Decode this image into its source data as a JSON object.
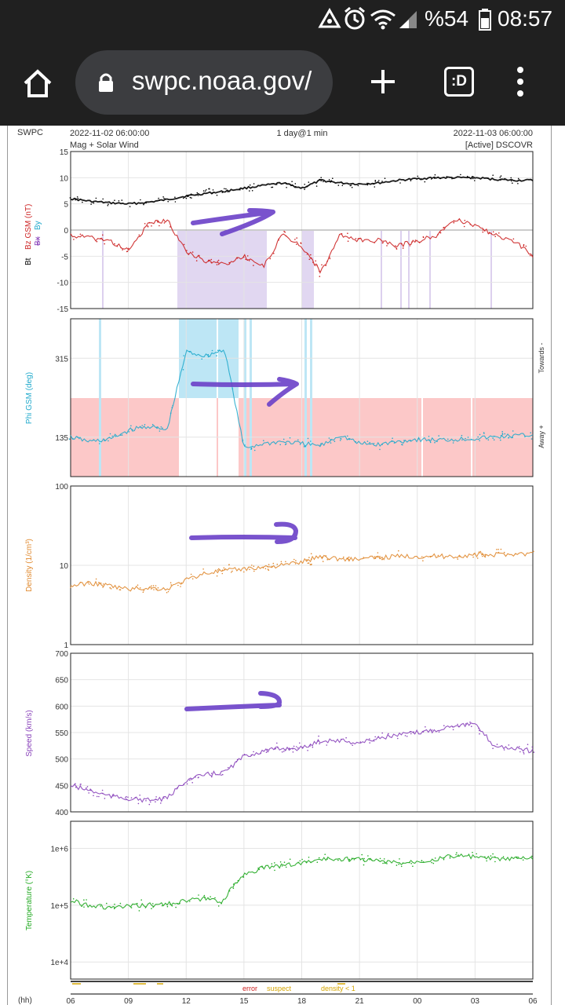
{
  "status_bar": {
    "battery": "%54",
    "time": "08:57",
    "icons": [
      "data-saver-icon",
      "alarm-icon",
      "wifi-icon",
      "signal-icon",
      "battery-icon"
    ]
  },
  "browser": {
    "url": "swpc.noaa.gov/",
    "icons": [
      "home-icon",
      "lock-icon",
      "new-tab-icon",
      "tab-switcher-icon",
      "menu-icon"
    ],
    "tab_label": ":D"
  },
  "header": {
    "left": "SWPC",
    "start": "2022-11-02 06:00:00",
    "title": "1 day@1 min",
    "end": "2022-11-03 06:00:00",
    "subtitle": "Mag + Solar Wind",
    "source": "[Active] DSCOVR"
  },
  "colors": {
    "bt": "#000000",
    "bz": "#cc2222",
    "phi": "#22aacc",
    "density": "#e08a30",
    "speed": "#8a44bb",
    "temperature": "#22aa22",
    "annotation": "#6a40c8",
    "bz_shade": "#dcd0ee",
    "towards": "#bde6f5",
    "away": "#fcc8c8"
  },
  "x_axis": {
    "label": "(hh)",
    "ticks": [
      "06",
      "09",
      "12",
      "15",
      "18",
      "21",
      "00",
      "03",
      "06"
    ]
  },
  "quality_legend": {
    "error": "error",
    "suspect": "suspect",
    "density": "density < 1"
  },
  "chart_data": [
    {
      "type": "line",
      "id": "mag",
      "ylabel": "Bt Bz GSM (nT)",
      "legend_parts": [
        "Bt",
        "Bz GSM (nT)",
        "Bx",
        "By"
      ],
      "ylim": [
        -15,
        15
      ],
      "ytick_labels": [
        "15",
        "10",
        "5",
        "0",
        "-5",
        "-10",
        "-15"
      ],
      "x": [
        6,
        7,
        8,
        9,
        10,
        11,
        12,
        13,
        14,
        15,
        16,
        17,
        18,
        19,
        20,
        21,
        22,
        23,
        24,
        25,
        26,
        27,
        28,
        29,
        30
      ],
      "series": [
        {
          "name": "Bt",
          "values": [
            6,
            5.5,
            5.2,
            5,
            5.3,
            5.8,
            6.5,
            7,
            7.4,
            8,
            8.5,
            9,
            8,
            9.5,
            9,
            8.8,
            9,
            9.5,
            9.8,
            10,
            10,
            10,
            9.7,
            9.5,
            9.5
          ]
        },
        {
          "name": "Bz GSM (nT)",
          "values": [
            -1,
            -1.5,
            -2,
            -4,
            1,
            2,
            -4,
            -6,
            -6.5,
            -5,
            -7,
            -1,
            -3,
            -8,
            -1,
            -2,
            -2,
            -3,
            -2,
            -1,
            2,
            1,
            -1,
            -2,
            -5
          ]
        }
      ]
    },
    {
      "type": "line",
      "id": "phi",
      "ylabel": "Phi GSM (deg)",
      "ylim": [
        45,
        405
      ],
      "ytick_labels": [
        "315",
        "135"
      ],
      "side_labels": [
        "Towards -",
        "Away +"
      ],
      "x": [
        6,
        7,
        8,
        9,
        10,
        11,
        12,
        13,
        14,
        15,
        16,
        17,
        18,
        19,
        20,
        21,
        22,
        23,
        24,
        25,
        26,
        27,
        28,
        29,
        30
      ],
      "series": [
        {
          "name": "Phi GSM (deg)",
          "values": [
            135,
            125,
            130,
            150,
            160,
            150,
            330,
            320,
            335,
            110,
            120,
            125,
            120,
            115,
            140,
            120,
            118,
            125,
            130,
            128,
            130,
            132,
            135,
            138,
            140
          ]
        }
      ]
    },
    {
      "type": "line",
      "id": "density",
      "ylabel": "Density (1/cm³)",
      "scale": "log",
      "ylim": [
        1,
        100
      ],
      "ytick_labels": [
        "100",
        "10",
        "1"
      ],
      "x": [
        6,
        7,
        8,
        9,
        10,
        11,
        12,
        13,
        14,
        15,
        16,
        17,
        18,
        19,
        20,
        21,
        22,
        23,
        24,
        25,
        26,
        27,
        28,
        29,
        30
      ],
      "series": [
        {
          "name": "Density (1/cm³)",
          "values": [
            5.5,
            6,
            5.5,
            5,
            5.2,
            5,
            6.5,
            8,
            8.5,
            9,
            9.5,
            10,
            11,
            13,
            12,
            12,
            12.5,
            13,
            13,
            13,
            13,
            13.5,
            13.5,
            14,
            14
          ]
        }
      ]
    },
    {
      "type": "line",
      "id": "speed",
      "ylabel": "Speed (km/s)",
      "ylim": [
        400,
        700
      ],
      "ytick_labels": [
        "700",
        "650",
        "600",
        "550",
        "500",
        "450",
        "400"
      ],
      "x": [
        6,
        7,
        8,
        9,
        10,
        11,
        12,
        13,
        14,
        15,
        16,
        17,
        18,
        19,
        20,
        21,
        22,
        23,
        24,
        25,
        26,
        27,
        28,
        29,
        30
      ],
      "series": [
        {
          "name": "Speed (km/s)",
          "values": [
            450,
            440,
            430,
            425,
            422,
            425,
            460,
            470,
            475,
            505,
            515,
            520,
            520,
            535,
            535,
            530,
            540,
            545,
            550,
            555,
            565,
            565,
            525,
            520,
            515
          ]
        }
      ]
    },
    {
      "type": "line",
      "id": "temperature",
      "ylabel": "Temperature (°K)",
      "scale": "log",
      "ylim": [
        5000,
        3000000
      ],
      "ytick_labels": [
        "1e+6",
        "1e+5",
        "1e+4"
      ],
      "x": [
        6,
        7,
        8,
        9,
        10,
        11,
        12,
        13,
        14,
        15,
        16,
        17,
        18,
        19,
        20,
        21,
        22,
        23,
        24,
        25,
        26,
        27,
        28,
        29,
        30
      ],
      "series": [
        {
          "name": "Temperature (°K)",
          "values": [
            120000,
            100000,
            90000,
            95000,
            100000,
            105000,
            120000,
            130000,
            115000,
            350000,
            450000,
            500000,
            550000,
            650000,
            650000,
            650000,
            600000,
            550000,
            600000,
            650000,
            750000,
            700000,
            650000,
            650000,
            680000
          ]
        }
      ]
    }
  ]
}
